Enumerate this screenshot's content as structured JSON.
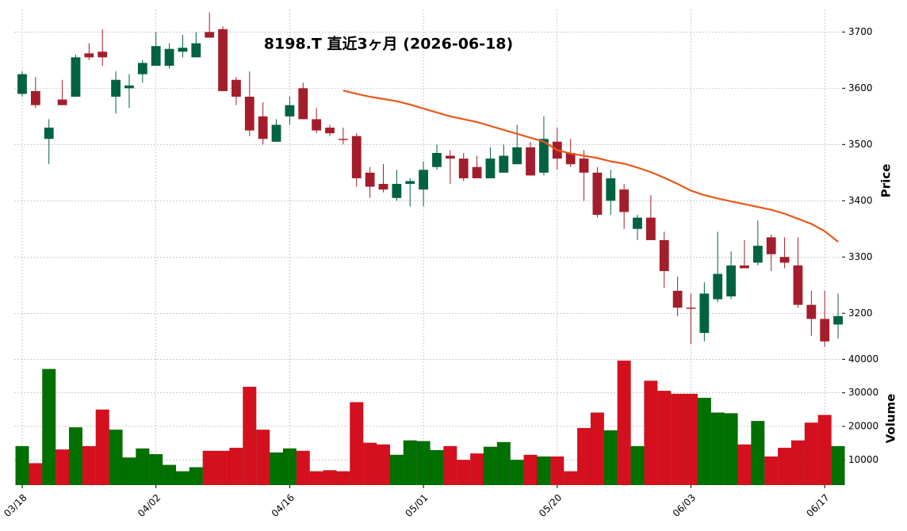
{
  "chart_data": [
    {
      "type": "candlestick",
      "title": "8198.T 直近3ヶ月 (2026-06-18)",
      "y_label": "Price",
      "categories": [
        "03/18",
        null,
        null,
        null,
        null,
        null,
        null,
        null,
        null,
        null,
        "04/02",
        null,
        null,
        null,
        null,
        null,
        null,
        null,
        null,
        null,
        "04/16",
        null,
        null,
        null,
        null,
        null,
        null,
        null,
        null,
        null,
        "05/01",
        null,
        null,
        null,
        null,
        null,
        null,
        null,
        null,
        null,
        "05/20",
        null,
        null,
        null,
        null,
        null,
        null,
        null,
        null,
        null,
        "06/03",
        null,
        null,
        null,
        null,
        null,
        null,
        null,
        null,
        null,
        "06/17",
        null
      ],
      "open": [
        3590,
        3595,
        3510,
        3580,
        3585,
        3662,
        3665,
        3585,
        3600,
        3625,
        3640,
        3640,
        3665,
        3655,
        3700,
        3705,
        3615,
        3585,
        3550,
        3505,
        3550,
        3600,
        3545,
        3530,
        3510,
        3515,
        3450,
        3430,
        3405,
        3430,
        3420,
        3460,
        3480,
        3475,
        3460,
        3440,
        3450,
        3465,
        3495,
        3450,
        3505,
        3485,
        3475,
        3450,
        3400,
        3420,
        3350,
        3370,
        3330,
        3240,
        3210,
        3165,
        3225,
        3230,
        3285,
        3290,
        3335,
        3300,
        3285,
        3215,
        3190,
        3180
      ],
      "high": [
        3630,
        3620,
        3545,
        3615,
        3660,
        3680,
        3705,
        3630,
        3625,
        3650,
        3700,
        3680,
        3695,
        3700,
        3735,
        3710,
        3620,
        3630,
        3575,
        3545,
        3585,
        3610,
        3565,
        3535,
        3530,
        3520,
        3460,
        3465,
        3455,
        3440,
        3470,
        3500,
        3490,
        3485,
        3480,
        3495,
        3500,
        3535,
        3505,
        3550,
        3530,
        3510,
        3490,
        3460,
        3455,
        3430,
        3375,
        3410,
        3345,
        3265,
        3235,
        3255,
        3345,
        3310,
        3330,
        3365,
        3340,
        3335,
        3335,
        3240,
        3240,
        3235
      ],
      "low": [
        3585,
        3565,
        3465,
        3570,
        3585,
        3650,
        3640,
        3555,
        3565,
        3610,
        3640,
        3635,
        3655,
        3655,
        3690,
        3595,
        3570,
        3515,
        3500,
        3505,
        3535,
        3545,
        3520,
        3515,
        3500,
        3425,
        3405,
        3415,
        3400,
        3390,
        3390,
        3455,
        3430,
        3435,
        3440,
        3440,
        3450,
        3465,
        3445,
        3445,
        3455,
        3460,
        3400,
        3370,
        3375,
        3350,
        3330,
        3330,
        3245,
        3195,
        3145,
        3150,
        3220,
        3225,
        3280,
        3285,
        3275,
        3280,
        3210,
        3160,
        3140,
        3155
      ],
      "close": [
        3625,
        3570,
        3530,
        3570,
        3655,
        3655,
        3655,
        3615,
        3605,
        3645,
        3675,
        3670,
        3672,
        3680,
        3690,
        3595,
        3585,
        3525,
        3510,
        3535,
        3570,
        3545,
        3525,
        3520,
        3508,
        3440,
        3425,
        3420,
        3430,
        3435,
        3455,
        3485,
        3475,
        3440,
        3440,
        3475,
        3480,
        3495,
        3445,
        3510,
        3475,
        3465,
        3450,
        3375,
        3440,
        3380,
        3370,
        3330,
        3275,
        3210,
        3208,
        3235,
        3270,
        3285,
        3280,
        3320,
        3305,
        3290,
        3215,
        3190,
        3150,
        3195
      ],
      "ma": [
        null,
        null,
        null,
        null,
        null,
        null,
        null,
        null,
        null,
        null,
        null,
        null,
        null,
        null,
        null,
        null,
        null,
        null,
        null,
        null,
        null,
        null,
        null,
        null,
        3596,
        3590,
        3585,
        3581,
        3577,
        3571,
        3564,
        3557,
        3550,
        3545,
        3540,
        3533,
        3526,
        3519,
        3512,
        3505,
        3490,
        3484,
        3480,
        3476,
        3470,
        3466,
        3459,
        3451,
        3441,
        3430,
        3418,
        3410,
        3404,
        3399,
        3394,
        3389,
        3384,
        3377,
        3368,
        3359,
        3346,
        3327
      ],
      "ma_color": "#e8591a",
      "up_color": "#006340",
      "down_color": "#a31d2b",
      "ylim": [
        3137,
        3740
      ],
      "yticks": [
        3200,
        3300,
        3400,
        3500,
        3600,
        3700
      ],
      "grid": true
    },
    {
      "type": "bar",
      "y_label": "Volume",
      "values": [
        14100,
        9000,
        37100,
        13100,
        19700,
        14100,
        25000,
        19000,
        10700,
        13400,
        11700,
        8500,
        6600,
        7800,
        12700,
        12700,
        13600,
        31800,
        19000,
        12200,
        13400,
        12700,
        6600,
        6900,
        6600,
        27200,
        15100,
        14600,
        11500,
        15800,
        15600,
        12900,
        14100,
        10000,
        11900,
        13900,
        15300,
        10000,
        11500,
        11000,
        11000,
        6600,
        19500,
        24100,
        18800,
        39600,
        14100,
        33600,
        30600,
        29700,
        29700,
        28500,
        24100,
        23900,
        14600,
        21600,
        11000,
        13600,
        15800,
        21100,
        23400,
        14100
      ],
      "up_color": "#007000",
      "down_color": "#d5101e",
      "ylim": [
        2500,
        41500
      ],
      "yticks": [
        10000,
        20000,
        30000,
        40000
      ],
      "grid": true
    }
  ]
}
